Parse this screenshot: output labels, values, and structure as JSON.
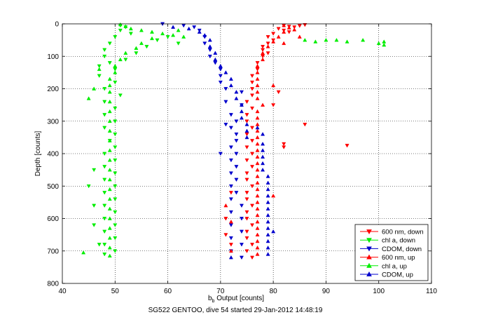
{
  "chart_data": {
    "type": "scatter",
    "title": "",
    "caption": "SG522 GENTOO, dive 54 started 29-Jan-2012 14:48:19",
    "xlabel_main": "b",
    "xlabel_sub": "b",
    "xlabel_rest": " Output [counts]",
    "ylabel": "Depth [counts]",
    "xlim": [
      40,
      110
    ],
    "ylim": [
      0,
      800
    ],
    "y_reversed": true,
    "grid": "dotted",
    "legend_position": "bottom-right",
    "x_ticks": [
      "40",
      "50",
      "60",
      "70",
      "80",
      "90",
      "100",
      "110"
    ],
    "y_ticks": [
      "0",
      "100",
      "200",
      "300",
      "400",
      "500",
      "600",
      "700",
      "800"
    ],
    "series": [
      {
        "name": "600 nm, down",
        "color": "#ff0000",
        "marker": "triangle-down",
        "points": [
          [
            82,
            5
          ],
          [
            83,
            8
          ],
          [
            84,
            10
          ],
          [
            85,
            6
          ],
          [
            86,
            3
          ],
          [
            81,
            15
          ],
          [
            82,
            20
          ],
          [
            83,
            25
          ],
          [
            80,
            30
          ],
          [
            79,
            40
          ],
          [
            80,
            50
          ],
          [
            79,
            60
          ],
          [
            78,
            70
          ],
          [
            78,
            80
          ],
          [
            79,
            90
          ],
          [
            78,
            100
          ],
          [
            77,
            120
          ],
          [
            77,
            140
          ],
          [
            76,
            160
          ],
          [
            76,
            180
          ],
          [
            76,
            200
          ],
          [
            76,
            220
          ],
          [
            75,
            240
          ],
          [
            76,
            260
          ],
          [
            75,
            280
          ],
          [
            75,
            300
          ],
          [
            76,
            320
          ],
          [
            75,
            340
          ],
          [
            76,
            360
          ],
          [
            75,
            380
          ],
          [
            76,
            400
          ],
          [
            75,
            420
          ],
          [
            76,
            440
          ],
          [
            75,
            460
          ],
          [
            75,
            480
          ],
          [
            76,
            500
          ],
          [
            75,
            520
          ],
          [
            75,
            540
          ],
          [
            76,
            560
          ],
          [
            75,
            580
          ],
          [
            75,
            600
          ],
          [
            76,
            620
          ],
          [
            75,
            640
          ],
          [
            75,
            660
          ],
          [
            76,
            680
          ],
          [
            75,
            700
          ],
          [
            76,
            720
          ],
          [
            86,
            310
          ],
          [
            82,
            380
          ],
          [
            94,
            375
          ],
          [
            82,
            370
          ],
          [
            80,
            250
          ],
          [
            81,
            210
          ],
          [
            72,
            520
          ],
          [
            71,
            600
          ],
          [
            71,
            650
          ],
          [
            72,
            680
          ]
        ]
      },
      {
        "name": "chl a, down",
        "color": "#00ee00",
        "marker": "triangle-down",
        "points": [
          [
            51,
            5
          ],
          [
            52,
            10
          ],
          [
            51,
            20
          ],
          [
            53,
            30
          ],
          [
            50,
            40
          ],
          [
            49,
            60
          ],
          [
            48,
            80
          ],
          [
            48,
            100
          ],
          [
            47,
            130
          ],
          [
            47,
            160
          ],
          [
            48,
            200
          ],
          [
            48,
            240
          ],
          [
            48,
            280
          ],
          [
            48,
            320
          ],
          [
            49,
            360
          ],
          [
            48,
            400
          ],
          [
            48,
            440
          ],
          [
            48,
            480
          ],
          [
            48,
            520
          ],
          [
            48,
            560
          ],
          [
            48,
            600
          ],
          [
            48,
            640
          ],
          [
            48,
            680
          ],
          [
            48,
            710
          ],
          [
            50,
            140
          ],
          [
            50,
            180
          ],
          [
            51,
            220
          ],
          [
            50,
            260
          ],
          [
            50,
            300
          ],
          [
            50,
            340
          ],
          [
            50,
            380
          ],
          [
            50,
            420
          ],
          [
            50,
            460
          ],
          [
            50,
            500
          ],
          [
            50,
            540
          ],
          [
            50,
            580
          ],
          [
            50,
            620
          ],
          [
            50,
            660
          ],
          [
            50,
            700
          ],
          [
            46,
            450
          ],
          [
            45,
            500
          ],
          [
            46,
            560
          ],
          [
            46,
            620
          ],
          [
            47,
            680
          ],
          [
            49,
            120
          ],
          [
            52,
            110
          ],
          [
            54,
            90
          ],
          [
            56,
            70
          ],
          [
            58,
            50
          ],
          [
            60,
            40
          ],
          [
            62,
            60
          ]
        ]
      },
      {
        "name": "CDOM, down",
        "color": "#0000cc",
        "marker": "triangle-down",
        "points": [
          [
            59,
            0
          ],
          [
            63,
            5
          ],
          [
            65,
            10
          ],
          [
            66,
            20
          ],
          [
            67,
            40
          ],
          [
            67,
            60
          ],
          [
            68,
            80
          ],
          [
            68,
            100
          ],
          [
            69,
            120
          ],
          [
            70,
            140
          ],
          [
            70,
            160
          ],
          [
            70,
            180
          ],
          [
            71,
            200
          ],
          [
            71,
            240
          ],
          [
            72,
            280
          ],
          [
            72,
            320
          ],
          [
            73,
            360
          ],
          [
            73,
            400
          ],
          [
            73,
            440
          ],
          [
            73,
            480
          ],
          [
            73,
            520
          ],
          [
            74,
            560
          ],
          [
            74,
            600
          ],
          [
            74,
            640
          ],
          [
            74,
            680
          ],
          [
            74,
            720
          ],
          [
            74,
            210
          ],
          [
            74,
            250
          ],
          [
            73,
            300
          ],
          [
            73,
            340
          ],
          [
            72,
            380
          ],
          [
            72,
            420
          ],
          [
            72,
            460
          ],
          [
            72,
            500
          ],
          [
            72,
            540
          ],
          [
            72,
            580
          ],
          [
            72,
            620
          ],
          [
            72,
            660
          ],
          [
            72,
            700
          ],
          [
            71,
            310
          ],
          [
            70,
            400
          ]
        ]
      },
      {
        "name": "600 nm, up",
        "color": "#ff0000",
        "marker": "triangle-up",
        "points": [
          [
            82,
            5
          ],
          [
            83,
            12
          ],
          [
            84,
            18
          ],
          [
            82,
            25
          ],
          [
            81,
            40
          ],
          [
            80,
            55
          ],
          [
            79,
            70
          ],
          [
            78,
            90
          ],
          [
            78,
            110
          ],
          [
            77,
            130
          ],
          [
            77,
            150
          ],
          [
            77,
            170
          ],
          [
            77,
            190
          ],
          [
            77,
            210
          ],
          [
            77,
            230
          ],
          [
            78,
            250
          ],
          [
            77,
            270
          ],
          [
            77,
            290
          ],
          [
            77,
            310
          ],
          [
            77,
            330
          ],
          [
            77,
            350
          ],
          [
            77,
            370
          ],
          [
            77,
            390
          ],
          [
            77,
            410
          ],
          [
            77,
            430
          ],
          [
            77,
            450
          ],
          [
            77,
            470
          ],
          [
            77,
            490
          ],
          [
            77,
            510
          ],
          [
            77,
            530
          ],
          [
            77,
            550
          ],
          [
            77,
            570
          ],
          [
            77,
            590
          ],
          [
            77,
            610
          ],
          [
            77,
            630
          ],
          [
            77,
            650
          ],
          [
            77,
            670
          ],
          [
            77,
            690
          ],
          [
            77,
            710
          ],
          [
            80,
            530
          ],
          [
            80,
            190
          ],
          [
            82,
            60
          ],
          [
            85,
            40
          ],
          [
            72,
            700
          ],
          [
            72,
            610
          ],
          [
            71,
            560
          ]
        ]
      },
      {
        "name": "chl a, up",
        "color": "#00ee00",
        "marker": "triangle-up",
        "points": [
          [
            51,
            2
          ],
          [
            52,
            8
          ],
          [
            53,
            15
          ],
          [
            55,
            20
          ],
          [
            57,
            25
          ],
          [
            59,
            30
          ],
          [
            61,
            35
          ],
          [
            57,
            45
          ],
          [
            55,
            60
          ],
          [
            54,
            75
          ],
          [
            52,
            90
          ],
          [
            51,
            110
          ],
          [
            50,
            130
          ],
          [
            50,
            150
          ],
          [
            49,
            170
          ],
          [
            49,
            190
          ],
          [
            49,
            210
          ],
          [
            49,
            240
          ],
          [
            49,
            270
          ],
          [
            49,
            300
          ],
          [
            49,
            330
          ],
          [
            49,
            360
          ],
          [
            49,
            390
          ],
          [
            49,
            420
          ],
          [
            49,
            450
          ],
          [
            49,
            480
          ],
          [
            49,
            510
          ],
          [
            49,
            540
          ],
          [
            49,
            570
          ],
          [
            49,
            600
          ],
          [
            49,
            630
          ],
          [
            49,
            660
          ],
          [
            49,
            690
          ],
          [
            49,
            715
          ],
          [
            47,
            140
          ],
          [
            46,
            200
          ],
          [
            45,
            230
          ],
          [
            44,
            705
          ],
          [
            86,
            50
          ],
          [
            88,
            55
          ],
          [
            90,
            50
          ],
          [
            92,
            50
          ],
          [
            94,
            55
          ],
          [
            97,
            50
          ],
          [
            100,
            60
          ],
          [
            101,
            65
          ],
          [
            101,
            55
          ],
          [
            62,
            20
          ],
          [
            63,
            40
          ]
        ]
      },
      {
        "name": "CDOM, up",
        "color": "#0000cc",
        "marker": "triangle-up",
        "points": [
          [
            61,
            10
          ],
          [
            64,
            15
          ],
          [
            66,
            25
          ],
          [
            67,
            35
          ],
          [
            68,
            50
          ],
          [
            68,
            70
          ],
          [
            69,
            90
          ],
          [
            69,
            110
          ],
          [
            70,
            130
          ],
          [
            71,
            150
          ],
          [
            72,
            170
          ],
          [
            72,
            190
          ],
          [
            73,
            210
          ],
          [
            73,
            230
          ],
          [
            74,
            250
          ],
          [
            74,
            270
          ],
          [
            74,
            290
          ],
          [
            75,
            310
          ],
          [
            75,
            330
          ],
          [
            75,
            350
          ],
          [
            78,
            370
          ],
          [
            78,
            390
          ],
          [
            78,
            410
          ],
          [
            78,
            430
          ],
          [
            78,
            450
          ],
          [
            79,
            470
          ],
          [
            79,
            490
          ],
          [
            79,
            510
          ],
          [
            79,
            530
          ],
          [
            79,
            550
          ],
          [
            79,
            570
          ],
          [
            79,
            590
          ],
          [
            79,
            610
          ],
          [
            79,
            630
          ],
          [
            79,
            650
          ],
          [
            79,
            670
          ],
          [
            79,
            690
          ],
          [
            79,
            710
          ],
          [
            80,
            640
          ],
          [
            78,
            340
          ],
          [
            77,
            320
          ],
          [
            72,
            720
          ]
        ]
      }
    ]
  }
}
